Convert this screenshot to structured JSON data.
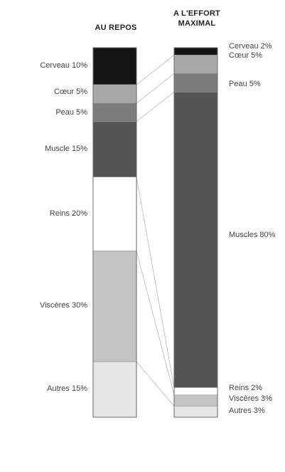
{
  "chart_data": {
    "type": "bar",
    "stacked": true,
    "title": "",
    "xlabel": "",
    "ylabel": "",
    "ylim": [
      0,
      100
    ],
    "categories": [
      "AU REPOS",
      "A L'EFFORT MAXIMAL"
    ],
    "category_title_lines": {
      "left": [
        "AU REPOS"
      ],
      "right": [
        "A L'EFFORT",
        "MAXIMAL"
      ]
    },
    "series": [
      {
        "name": "Cerveau",
        "values": [
          10,
          2
        ],
        "labels": [
          "Cerveau 10%",
          "Cerveau 2%"
        ],
        "color": "#141414"
      },
      {
        "name": "Cœur",
        "values": [
          5,
          5
        ],
        "labels": [
          "Cœur 5%",
          "Cœur 5%"
        ],
        "color": "#a8a8a8"
      },
      {
        "name": "Peau",
        "values": [
          5,
          5
        ],
        "labels": [
          "Peau 5%",
          "Peau 5%"
        ],
        "color": "#7c7c7c"
      },
      {
        "name": "Muscle",
        "values": [
          15,
          80
        ],
        "labels": [
          "Muscle 15%",
          "Muscles 80%"
        ],
        "color": "#545454"
      },
      {
        "name": "Reins",
        "values": [
          20,
          2
        ],
        "labels": [
          "Reins 20%",
          "Reins 2%"
        ],
        "color": "#ffffff"
      },
      {
        "name": "Viscères",
        "values": [
          30,
          3
        ],
        "labels": [
          "Viscères 30%",
          "Viscères 3%"
        ],
        "color": "#c4c4c4"
      },
      {
        "name": "Autres",
        "values": [
          15,
          3
        ],
        "labels": [
          "Autres 15%",
          "Autres 3%"
        ],
        "color": "#e6e6e6"
      }
    ],
    "grid": false,
    "legend": "none"
  }
}
